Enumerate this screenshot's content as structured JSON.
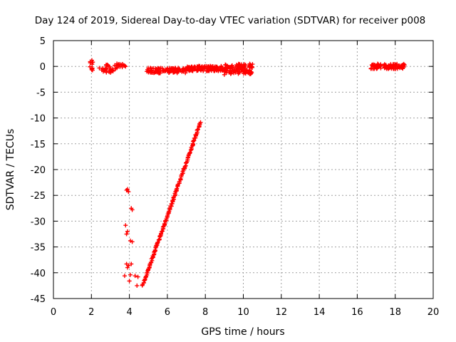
{
  "chart_data": {
    "type": "scatter",
    "title": "Day 124 of 2019, Sidereal Day-to-day VTEC variation (SDTVAR) for receiver p008",
    "xlabel": "GPS time / hours",
    "ylabel": "SDTVAR / TECUs",
    "xlim": [
      0,
      20
    ],
    "ylim": [
      -45,
      5
    ],
    "grid": true,
    "x_ticks": [
      "0",
      "2",
      "4",
      "6",
      "8",
      "10",
      "12",
      "14",
      "16",
      "18",
      "20"
    ],
    "y_ticks": [
      "5",
      "0",
      "-5",
      "-10",
      "-15",
      "-20",
      "-25",
      "-30",
      "-35",
      "-40",
      "-45"
    ],
    "color": "#ff0000",
    "marker": "plus",
    "clusters": [
      {
        "x_range": [
          1.9,
          2.1
        ],
        "y_center": 0.0,
        "y_spread": 1.2,
        "n": 12
      },
      {
        "x_range": [
          2.4,
          3.3
        ],
        "y_center": -0.4,
        "y_spread": 0.8,
        "n": 30
      },
      {
        "x_range": [
          3.3,
          3.8
        ],
        "y_center": 0.0,
        "y_spread": 0.6,
        "n": 15
      },
      {
        "x_range": [
          4.9,
          7.0
        ],
        "y_center": -0.8,
        "y_spread": 0.5,
        "n": 110
      },
      {
        "x_range": [
          7.0,
          9.0
        ],
        "y_center": -0.4,
        "y_spread": 0.5,
        "n": 110
      },
      {
        "x_range": [
          9.0,
          10.5
        ],
        "y_center": -0.5,
        "y_spread": 1.0,
        "n": 110
      },
      {
        "x_range": [
          16.7,
          18.5
        ],
        "y_center": 0.0,
        "y_spread": 0.5,
        "n": 100
      }
    ],
    "isolated_points": [
      {
        "x": 9.0,
        "y": -1.6
      },
      {
        "x": 3.85,
        "y": -24.0
      },
      {
        "x": 3.95,
        "y": -24.3
      },
      {
        "x": 3.9,
        "y": -23.8
      },
      {
        "x": 4.1,
        "y": -27.5
      },
      {
        "x": 4.15,
        "y": -27.8
      },
      {
        "x": 3.8,
        "y": -30.8
      },
      {
        "x": 3.9,
        "y": -32.0
      },
      {
        "x": 3.85,
        "y": -32.5
      },
      {
        "x": 4.05,
        "y": -33.8
      },
      {
        "x": 4.15,
        "y": -34.0
      },
      {
        "x": 3.85,
        "y": -38.3
      },
      {
        "x": 3.95,
        "y": -38.6
      },
      {
        "x": 4.1,
        "y": -38.3
      },
      {
        "x": 3.9,
        "y": -39.0
      },
      {
        "x": 3.75,
        "y": -40.6
      },
      {
        "x": 4.05,
        "y": -40.4
      },
      {
        "x": 4.3,
        "y": -40.6
      },
      {
        "x": 4.45,
        "y": -40.8
      },
      {
        "x": 4.0,
        "y": -41.6
      },
      {
        "x": 4.4,
        "y": -42.5
      }
    ],
    "trend": {
      "x_start": 4.7,
      "y_start": -42.5,
      "x_end": 7.75,
      "y_end": -10.8,
      "n": 150
    }
  }
}
